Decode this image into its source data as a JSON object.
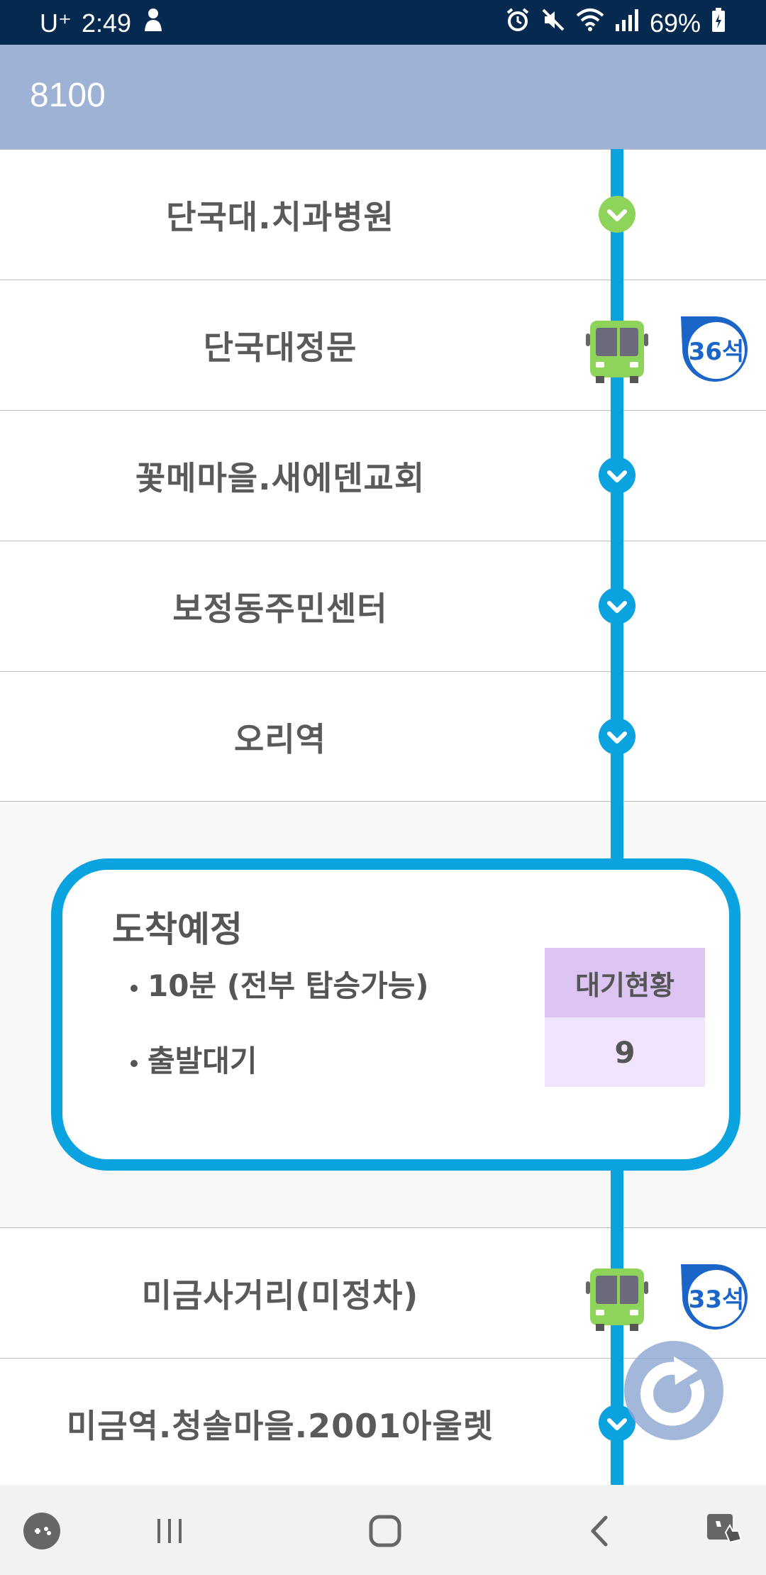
{
  "status_bar": {
    "carrier": "U⁺",
    "time": "2:49",
    "battery": "69%"
  },
  "app_bar": {
    "title": "8100"
  },
  "stops_top": [
    {
      "name": "단국대.치과병원",
      "marker": "green-check"
    },
    {
      "name": "단국대정문",
      "marker": "bus",
      "seats": "36석"
    },
    {
      "name": "꽃메마을.새에덴교회",
      "marker": "chevron"
    },
    {
      "name": "보정동주민센터",
      "marker": "chevron"
    },
    {
      "name": "오리역",
      "marker": "chevron"
    }
  ],
  "arrival": {
    "heading": "도착예정",
    "line1": "10분 (전부 탑승가능)",
    "line2": "출발대기",
    "wait_label": "대기현황",
    "wait_value": "9"
  },
  "stops_bottom": [
    {
      "name": "미금사거리(미정차)",
      "marker": "bus",
      "seats": "33석"
    },
    {
      "name": "미금역.청솔마을.2001아울렛",
      "marker": "chevron"
    }
  ],
  "colors": {
    "route_line": "#0aa3e0",
    "status_bar": "#062a4f",
    "app_bar": "#9db2d4",
    "bus_green": "#8ed45a",
    "seat_blue": "#1b65c9",
    "wait_header": "#dcc4f3",
    "wait_value_bg": "#f1e4fd"
  },
  "icons": {
    "status_left": [
      "person-icon"
    ],
    "status_right": [
      "alarm-icon",
      "mute-icon",
      "wifi-icon",
      "signal-icon",
      "battery-icon"
    ],
    "nav": [
      "game-tools-icon",
      "recents-icon",
      "home-icon",
      "back-icon",
      "assist-icon"
    ],
    "refresh": "refresh-icon"
  }
}
